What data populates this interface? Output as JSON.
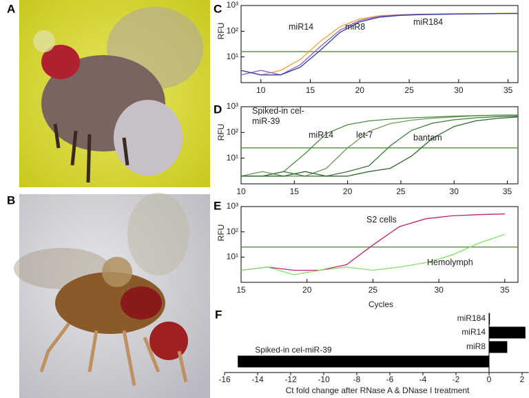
{
  "photo_panels": [
    {
      "panel_label": "A"
    },
    {
      "panel_label": "B"
    }
  ],
  "chart_data": [
    {
      "type": "line",
      "panel_label": "C",
      "y_label": "RFU",
      "log_y": true,
      "threshold": 16,
      "threshold_color": "#5a9a4a",
      "x": [
        8,
        10,
        12,
        14,
        16,
        18,
        20,
        22,
        24,
        26,
        28,
        30,
        32,
        34,
        36
      ],
      "xlim": [
        8,
        36
      ],
      "xticks": [
        10,
        15,
        20,
        25,
        30,
        35
      ],
      "ylim": [
        1,
        1000
      ],
      "yticks": [
        {
          "value": 10,
          "label": "10¹"
        },
        {
          "value": 100,
          "label": "10²"
        },
        {
          "value": 1000,
          "label": "10³"
        }
      ],
      "series": [
        {
          "name": "miR14",
          "color": "#f0a040",
          "values": [
            3,
            2,
            3,
            8,
            40,
            150,
            300,
            400,
            440,
            460,
            470,
            480,
            490,
            495,
            500
          ]
        },
        {
          "name": "miR8",
          "color": "#9060c0",
          "values": [
            2,
            3,
            2,
            5,
            25,
            110,
            260,
            380,
            430,
            450,
            460,
            470,
            480,
            490,
            495
          ]
        },
        {
          "name": "miR184",
          "color": "#3040a0",
          "values": [
            3,
            2,
            2,
            4,
            18,
            90,
            230,
            350,
            410,
            440,
            455,
            465,
            475,
            485,
            490
          ]
        }
      ]
    },
    {
      "type": "line",
      "panel_label": "D",
      "y_label": "RFU",
      "log_y": true,
      "threshold": 25,
      "threshold_color": "#5a9a4a",
      "x": [
        10,
        12,
        14,
        16,
        18,
        20,
        22,
        24,
        26,
        28,
        30,
        32,
        34,
        36
      ],
      "xlim": [
        10,
        36
      ],
      "xticks": [
        10,
        15,
        20,
        25,
        30,
        35
      ],
      "ylim": [
        1,
        1000
      ],
      "yticks": [
        {
          "value": 10,
          "label": "10¹"
        },
        {
          "value": 100,
          "label": "10²"
        },
        {
          "value": 1000,
          "label": "10³"
        }
      ],
      "series": [
        {
          "name": "Spiked-in cel-miR-39",
          "color": "#4a8a3a",
          "values": [
            2,
            2,
            3,
            15,
            90,
            200,
            280,
            330,
            370,
            400,
            430,
            450,
            470,
            480
          ]
        },
        {
          "name": "miR14",
          "color": "#6b9a5a",
          "values": [
            2,
            3,
            2,
            2,
            4,
            25,
            110,
            220,
            300,
            360,
            400,
            440,
            460,
            470
          ]
        },
        {
          "name": "let-7",
          "color": "#3a7a3a",
          "values": [
            2,
            2,
            3,
            2,
            2,
            3,
            5,
            30,
            120,
            230,
            310,
            370,
            410,
            430
          ]
        },
        {
          "name": "bantam",
          "color": "#2a6a2a",
          "values": [
            2,
            2,
            2,
            3,
            2,
            2,
            3,
            4,
            12,
            60,
            170,
            280,
            350,
            400
          ]
        }
      ]
    },
    {
      "type": "line",
      "panel_label": "E",
      "y_label": "RFU",
      "x_label": "Cycles",
      "log_y": true,
      "threshold": 25,
      "threshold_color": "#5a9a4a",
      "x": [
        15,
        17,
        19,
        21,
        23,
        25,
        27,
        29,
        31,
        33,
        35
      ],
      "xlim": [
        15,
        36
      ],
      "xticks": [
        15,
        20,
        25,
        30,
        35
      ],
      "ylim": [
        1,
        1000
      ],
      "yticks": [
        {
          "value": 10,
          "label": "10¹"
        },
        {
          "value": 100,
          "label": "10²"
        },
        {
          "value": 1000,
          "label": "10³"
        }
      ],
      "series": [
        {
          "name": "S2 cells",
          "color": "#c02070",
          "values": [
            3,
            4,
            3,
            3,
            5,
            30,
            160,
            330,
            430,
            480,
            510
          ]
        },
        {
          "name": "Hemolymph",
          "color": "#80e060",
          "values": [
            3,
            4,
            2,
            3,
            4,
            3,
            4,
            6,
            12,
            35,
            80
          ]
        }
      ]
    },
    {
      "type": "hbar",
      "panel_label": "F",
      "x_label": "Ct fold change after RNase A & DNase I treatment",
      "color": "#000000",
      "categories": [
        "miR184",
        "miR14",
        "miR8",
        "Spiked-in cel-miR-39"
      ],
      "values": [
        0.05,
        2.2,
        1.1,
        -15.2
      ],
      "xlim": [
        -16,
        2.4
      ],
      "xticks": [
        -16,
        -14,
        -12,
        -10,
        -8,
        -6,
        -4,
        -2,
        0,
        2
      ]
    }
  ]
}
